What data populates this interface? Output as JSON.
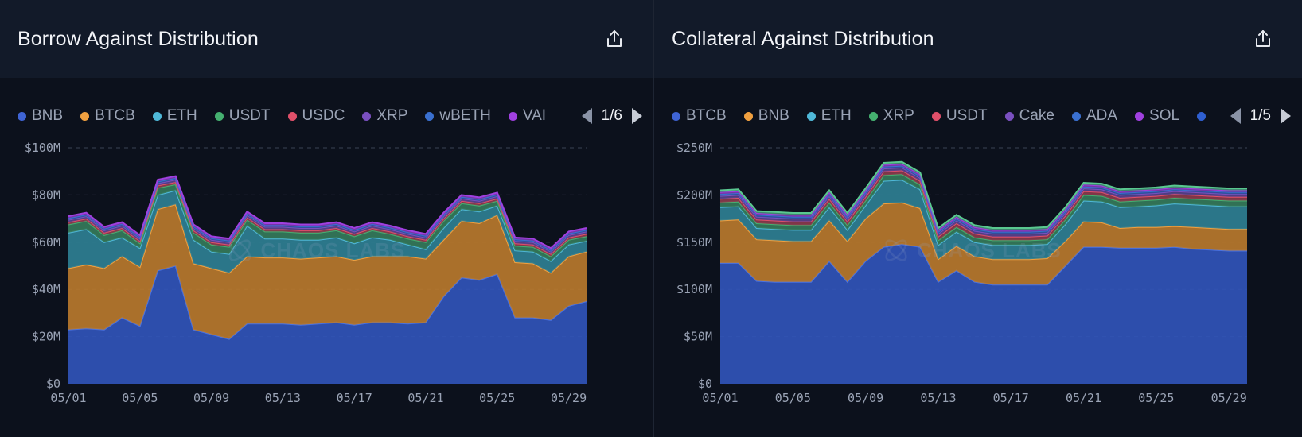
{
  "panels": [
    {
      "title": "Borrow Against Distribution",
      "share_icon": "share-icon",
      "legend": [
        {
          "name": "BNB",
          "color": "#3f64d4"
        },
        {
          "name": "BTCB",
          "color": "#f0a040"
        },
        {
          "name": "ETH",
          "color": "#4fb8d8"
        },
        {
          "name": "USDT",
          "color": "#45b070"
        },
        {
          "name": "USDC",
          "color": "#e0506a"
        },
        {
          "name": "XRP",
          "color": "#7a50c0"
        },
        {
          "name": "wBETH",
          "color": "#3a70d0"
        },
        {
          "name": "VAI",
          "color": "#a040e0"
        }
      ],
      "pager": {
        "page": "1/6"
      },
      "watermark": "CHAOS LABS"
    },
    {
      "title": "Collateral Against Distribution",
      "share_icon": "share-icon",
      "legend": [
        {
          "name": "BTCB",
          "color": "#3f64d4"
        },
        {
          "name": "BNB",
          "color": "#f0a040"
        },
        {
          "name": "ETH",
          "color": "#4fb8d8"
        },
        {
          "name": "XRP",
          "color": "#45b070"
        },
        {
          "name": "USDT",
          "color": "#e0506a"
        },
        {
          "name": "Cake",
          "color": "#7a50c0"
        },
        {
          "name": "ADA",
          "color": "#3a70d0"
        },
        {
          "name": "SOL",
          "color": "#a040e0"
        },
        {
          "name": "",
          "color": "#2f5fd0"
        }
      ],
      "pager": {
        "page": "1/5"
      },
      "watermark": "CHAOS LABS"
    }
  ],
  "chart_data": [
    {
      "type": "area",
      "stacked": true,
      "title": "Borrow Against Distribution",
      "x_ticks": [
        "05/01",
        "05/05",
        "05/09",
        "05/13",
        "05/17",
        "05/21",
        "05/25",
        "05/29"
      ],
      "y_ticks": [
        "$0",
        "$20M",
        "$40M",
        "$60M",
        "$80M",
        "$100M"
      ],
      "ylim": [
        0,
        100
      ],
      "y_unit": "M",
      "x_tick_indices": [
        0,
        4,
        8,
        12,
        16,
        20,
        24,
        28
      ],
      "grid": true,
      "legend_position": "top",
      "series": [
        {
          "name": "BNB",
          "color": "#3154b8",
          "line": "#4a72e0",
          "values": [
            23,
            23.5,
            23,
            28,
            24.5,
            48,
            50,
            23,
            21,
            19,
            25.5,
            25.5,
            25.5,
            25,
            25.5,
            26,
            25,
            26,
            26,
            25.5,
            26,
            37,
            45,
            44,
            46.5,
            28,
            28,
            27,
            33,
            35
          ]
        },
        {
          "name": "BTCB",
          "color": "#b8782c",
          "line": "#f0a040",
          "values": [
            26,
            27,
            26,
            26,
            25,
            26,
            26,
            28,
            28,
            28,
            28.5,
            28,
            28,
            28,
            28,
            28,
            27.5,
            28,
            28,
            28.5,
            27,
            24,
            24,
            24,
            25,
            23.5,
            23,
            20,
            21,
            21
          ]
        },
        {
          "name": "ETH",
          "color": "#2f7f92",
          "line": "#4fb8d8",
          "values": [
            15,
            15,
            11,
            8,
            8,
            6,
            6,
            10,
            7,
            8,
            13,
            8,
            8,
            8,
            7.5,
            8,
            7,
            8,
            7,
            5,
            4,
            5,
            5,
            5,
            4,
            5,
            5,
            5,
            5,
            4.5
          ]
        },
        {
          "name": "USDT",
          "color": "#357a5a",
          "line": "#45b070",
          "values": [
            3.5,
            3.5,
            3,
            3,
            2,
            3,
            2.5,
            3,
            3,
            3,
            2.5,
            3,
            3,
            3,
            3,
            3,
            3,
            3,
            2.5,
            2.5,
            3,
            3,
            2.5,
            2.5,
            2,
            2,
            2,
            2,
            2,
            2
          ]
        },
        {
          "name": "USDC",
          "color": "#8a3a4c",
          "line": "#e0506a",
          "values": [
            1,
            1,
            1,
            1,
            1,
            1,
            1,
            1,
            1,
            1,
            1,
            1,
            1,
            1,
            1,
            1,
            1,
            1,
            1,
            1,
            1,
            1,
            1,
            1,
            1,
            1,
            1,
            1,
            1,
            1
          ]
        },
        {
          "name": "XRP",
          "color": "#55408a",
          "line": "#7a50c0",
          "values": [
            1,
            1,
            1,
            1,
            1,
            1,
            1,
            1,
            1,
            1,
            1,
            1,
            1,
            1,
            1,
            1,
            1,
            1,
            1,
            1,
            1,
            1,
            1,
            1,
            1,
            1,
            1,
            1,
            1,
            1
          ]
        },
        {
          "name": "wBETH",
          "color": "#2c4f9a",
          "line": "#3a70d0",
          "values": [
            0.7,
            0.7,
            0.7,
            0.7,
            0.7,
            0.7,
            0.7,
            0.7,
            0.7,
            0.7,
            0.7,
            0.7,
            0.7,
            0.7,
            0.7,
            0.7,
            0.7,
            0.7,
            0.7,
            0.7,
            0.7,
            0.7,
            0.7,
            0.7,
            0.7,
            0.7,
            0.7,
            0.7,
            0.7,
            0.7
          ]
        },
        {
          "name": "VAI",
          "color": "#7a34a8",
          "line": "#a040e0",
          "values": [
            0.8,
            0.8,
            0.8,
            0.8,
            0.8,
            0.8,
            0.8,
            0.8,
            0.8,
            0.8,
            0.8,
            0.8,
            0.8,
            0.8,
            0.8,
            0.8,
            0.8,
            0.8,
            0.8,
            0.8,
            0.8,
            0.8,
            0.8,
            0.8,
            0.8,
            0.8,
            0.8,
            0.8,
            0.8,
            0.8
          ]
        }
      ]
    },
    {
      "type": "area",
      "stacked": true,
      "title": "Collateral Against Distribution",
      "x_ticks": [
        "05/01",
        "05/05",
        "05/09",
        "05/13",
        "05/17",
        "05/21",
        "05/25",
        "05/29"
      ],
      "y_ticks": [
        "$0",
        "$50M",
        "$100M",
        "$150M",
        "$200M",
        "$250M"
      ],
      "ylim": [
        0,
        250
      ],
      "y_unit": "M",
      "x_tick_indices": [
        0,
        4,
        8,
        12,
        16,
        20,
        24,
        28
      ],
      "grid": true,
      "legend_position": "top",
      "series": [
        {
          "name": "BTCB",
          "color": "#3154b8",
          "line": "#4a72e0",
          "values": [
            128,
            128,
            109,
            108,
            108,
            108,
            130,
            108,
            130,
            145,
            148,
            145,
            108,
            120,
            108,
            105,
            105,
            105,
            105,
            125,
            145,
            145,
            144,
            144,
            144,
            145,
            143,
            142,
            141,
            141
          ]
        },
        {
          "name": "BNB",
          "color": "#b8782c",
          "line": "#f0a040",
          "values": [
            45,
            46,
            44,
            44,
            43,
            43,
            43,
            43,
            45,
            46,
            44,
            41,
            24,
            26,
            27,
            27,
            27,
            27,
            28,
            26,
            27,
            26,
            21,
            22,
            22,
            22,
            23,
            23,
            23,
            23
          ]
        },
        {
          "name": "ETH",
          "color": "#2f7f92",
          "line": "#4fb8d8",
          "values": [
            14,
            14,
            12,
            12,
            12,
            12,
            14,
            12,
            14,
            24,
            24,
            20,
            15,
            15,
            15,
            15,
            15,
            15,
            15,
            18,
            22,
            22,
            22,
            22,
            23,
            24,
            24,
            24,
            24,
            24
          ]
        },
        {
          "name": "XRP",
          "color": "#357a5a",
          "line": "#45b070",
          "values": [
            5,
            5,
            5,
            5,
            5,
            5,
            5,
            5,
            5,
            6,
            6,
            5,
            5,
            5,
            5,
            5,
            5,
            5,
            5,
            5,
            6,
            6,
            6,
            6,
            6,
            6,
            6,
            6,
            6,
            6
          ]
        },
        {
          "name": "USDT",
          "color": "#8a3a4c",
          "line": "#e0506a",
          "values": [
            4,
            4,
            4,
            4,
            4,
            4,
            4,
            4,
            4,
            4,
            4,
            4,
            4,
            4,
            4,
            4,
            4,
            4,
            4,
            4,
            4,
            4,
            4,
            4,
            4,
            4,
            4,
            4,
            4,
            4
          ]
        },
        {
          "name": "Cake",
          "color": "#55408a",
          "line": "#7a50c0",
          "values": [
            3,
            3,
            3,
            3,
            3,
            3,
            3,
            3,
            3,
            3,
            3,
            3,
            3,
            3,
            3,
            3,
            3,
            3,
            3,
            3,
            3,
            3,
            3,
            3,
            3,
            3,
            3,
            3,
            3,
            3
          ]
        },
        {
          "name": "ADA",
          "color": "#2c4f9a",
          "line": "#3a70d0",
          "values": [
            2,
            2,
            2,
            2,
            2,
            2,
            2,
            2,
            2,
            2,
            2,
            2,
            2,
            2,
            2,
            2,
            2,
            2,
            2,
            2,
            2,
            2,
            2,
            2,
            2,
            2,
            2,
            2,
            2,
            2
          ]
        },
        {
          "name": "SOL",
          "color": "#7a34a8",
          "line": "#a040e0",
          "values": [
            2,
            2,
            2,
            2,
            2,
            2,
            2,
            2,
            2,
            2,
            2,
            2,
            2,
            2,
            2,
            2,
            2,
            2,
            2,
            2,
            2,
            2,
            2,
            2,
            2,
            2,
            2,
            2,
            2,
            2
          ]
        },
        {
          "name": "",
          "color": "#3a8a6a",
          "line": "#5ac890",
          "values": [
            2,
            2,
            2,
            2,
            2,
            2,
            2,
            2,
            2,
            2,
            2,
            2,
            2,
            2,
            2,
            2,
            2,
            2,
            2,
            2,
            2,
            2,
            2,
            2,
            2,
            2,
            2,
            2,
            2,
            2
          ]
        }
      ]
    }
  ]
}
